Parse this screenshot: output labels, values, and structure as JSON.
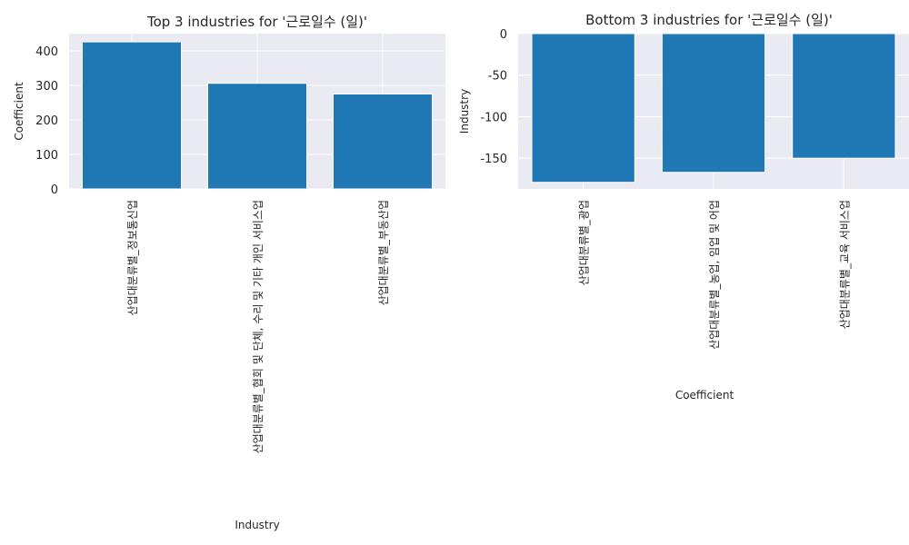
{
  "colors": {
    "bar": "#1f77b4",
    "plot_background": "#eaeaf2",
    "grid": "#ffffff",
    "text": "#262626"
  },
  "chart_data": [
    {
      "type": "bar",
      "title": "Top 3 industries for '근로일수 (일)'",
      "xlabel": "Industry",
      "ylabel": "Coefficient",
      "categories": [
        "산업대분류별_정보통신업",
        "산업대분류별_협회 및 단체, 수리 및 기타 개인 서비스업",
        "산업대분류별_부동산업"
      ],
      "values": [
        426,
        306,
        275
      ],
      "ylim": [
        0,
        450
      ],
      "yticks": [
        0,
        100,
        200,
        300,
        400
      ],
      "grid": true
    },
    {
      "type": "bar",
      "title": "Bottom 3 industries for '근로일수 (일)'",
      "xlabel": "Coefficient",
      "ylabel": "Industry",
      "categories": [
        "산업대분류별_광업",
        "산업대분류별_농업, 임업 및 어업",
        "산업대분류별_교육 서비스업"
      ],
      "values": [
        -179,
        -167,
        -150
      ],
      "ylim": [
        -187,
        0
      ],
      "yticks": [
        0,
        -50,
        -100,
        -150
      ],
      "grid": true
    }
  ]
}
